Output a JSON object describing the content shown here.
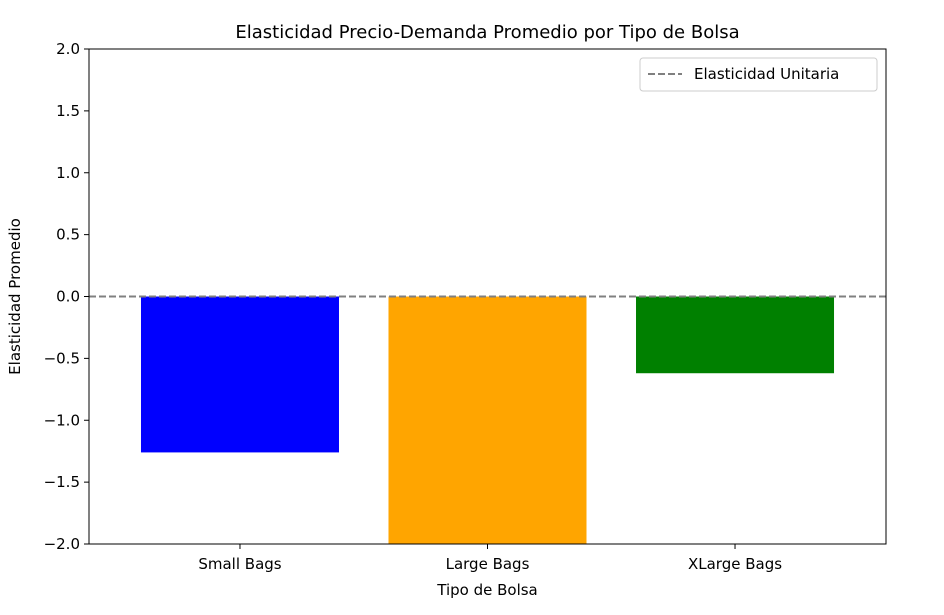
{
  "chart_data": {
    "type": "bar",
    "title": "Elasticidad Precio-Demanda Promedio por Tipo de Bolsa",
    "xlabel": "Tipo de Bolsa",
    "ylabel": "Elasticidad Promedio",
    "categories": [
      "Small Bags",
      "Large Bags",
      "XLarge Bags"
    ],
    "values": [
      -1.26,
      -2.05,
      -0.62
    ],
    "colors": [
      "#0000ff",
      "#ffa500",
      "#008000"
    ],
    "ylim": [
      -2.0,
      2.0
    ],
    "yticks": [
      2.0,
      1.5,
      1.0,
      0.5,
      0.0,
      -0.5,
      -1.0,
      -1.5,
      -2.0
    ],
    "ytick_labels": [
      "2.0",
      "1.5",
      "1.0",
      "0.5",
      "0.0",
      "−0.5",
      "−1.0",
      "−1.5",
      "−2.0"
    ],
    "reference_line": {
      "y": 0.0,
      "label": "Elasticidad Unitaria",
      "color": "#808080",
      "style": "dashed"
    },
    "legend": {
      "placement": "top-right",
      "entries": [
        "Elasticidad Unitaria"
      ]
    },
    "grid": false
  }
}
